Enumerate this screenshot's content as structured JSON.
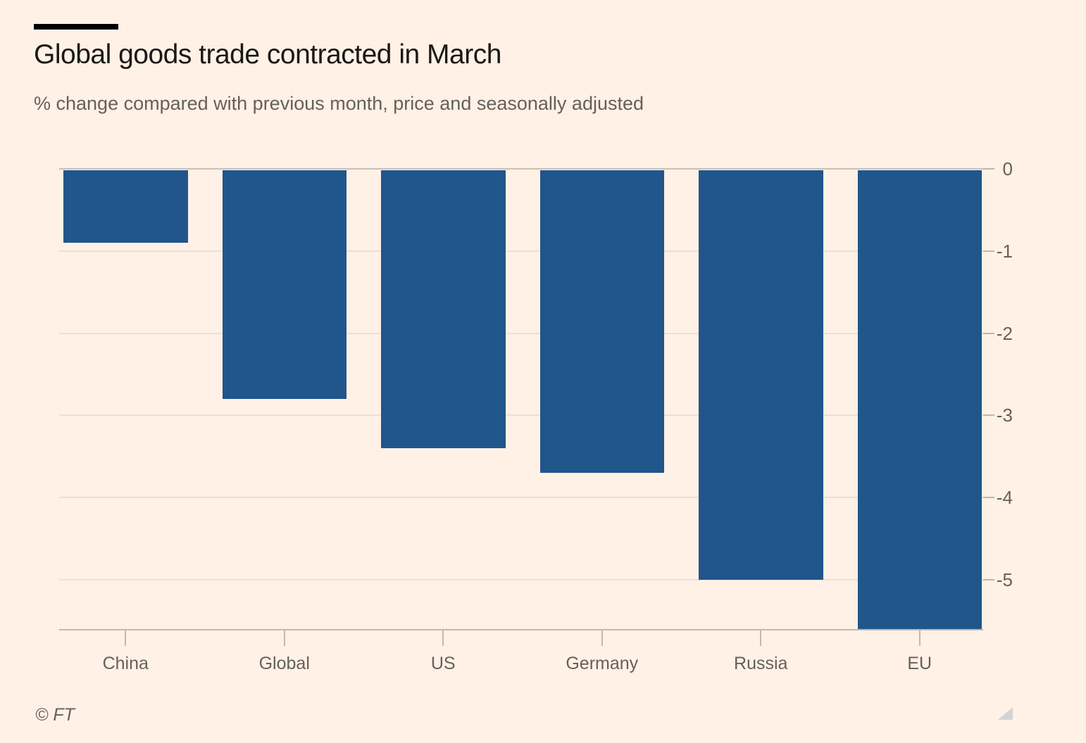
{
  "header": {
    "title": "Global goods trade contracted in March",
    "subtitle": "% change compared with previous month, price and seasonally adjusted"
  },
  "chart_data": {
    "type": "bar",
    "orientation": "vertical",
    "title": "Global goods trade contracted in March",
    "subtitle": "% change compared with previous month, price and seasonally adjusted",
    "categories": [
      "China",
      "Global",
      "US",
      "Germany",
      "Russia",
      "EU"
    ],
    "values": [
      -0.9,
      -2.8,
      -3.4,
      -3.7,
      -5.0,
      -5.6
    ],
    "xlabel": "",
    "ylabel": "",
    "ylim": [
      -5.6,
      0
    ],
    "y_ticks": [
      0,
      -1,
      -2,
      -3,
      -4,
      -5
    ],
    "y_tick_labels": [
      "0",
      "-1",
      "-2",
      "-3",
      "-4",
      "-5"
    ],
    "axis_side": "right",
    "grid": true,
    "legend": false,
    "bar_color": "#20568C",
    "background_color": "#FFF1E5",
    "gridline_color": "#e8e1d9",
    "axis_color": "#c0b9b1",
    "label_color": "#66605C"
  },
  "footer": {
    "credit": "© FT"
  }
}
